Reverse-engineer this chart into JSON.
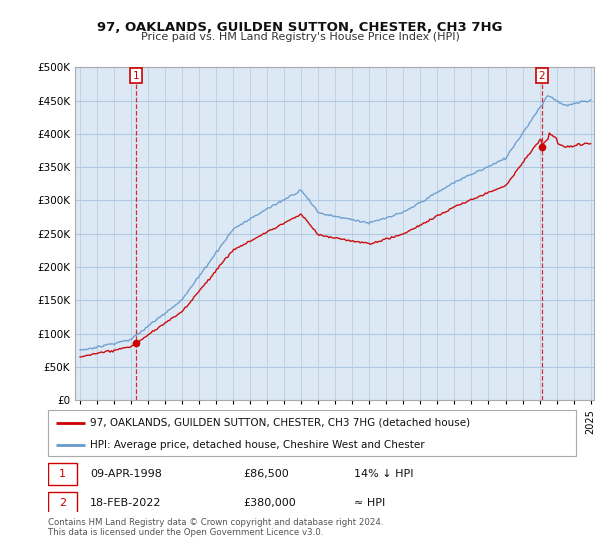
{
  "title": "97, OAKLANDS, GUILDEN SUTTON, CHESTER, CH3 7HG",
  "subtitle": "Price paid vs. HM Land Registry's House Price Index (HPI)",
  "legend_line1": "97, OAKLANDS, GUILDEN SUTTON, CHESTER, CH3 7HG (detached house)",
  "legend_line2": "HPI: Average price, detached house, Cheshire West and Chester",
  "sale1_date": "09-APR-1998",
  "sale1_price": "£86,500",
  "sale1_hpi": "14% ↓ HPI",
  "sale2_date": "18-FEB-2022",
  "sale2_price": "£380,000",
  "sale2_hpi": "≈ HPI",
  "footer": "Contains HM Land Registry data © Crown copyright and database right 2024.\nThis data is licensed under the Open Government Licence v3.0.",
  "property_color": "#cc0000",
  "hpi_color": "#6699cc",
  "plot_bg_color": "#dce9f5",
  "background_color": "#ffffff",
  "grid_color": "#b0c8e0",
  "ylim": [
    0,
    500000
  ],
  "yticks": [
    0,
    50000,
    100000,
    150000,
    200000,
    250000,
    300000,
    350000,
    400000,
    450000,
    500000
  ],
  "sale1_year": 1998.29,
  "sale1_value": 86500,
  "sale2_year": 2022.12,
  "sale2_value": 380000,
  "xstart": 1995,
  "xend": 2025
}
